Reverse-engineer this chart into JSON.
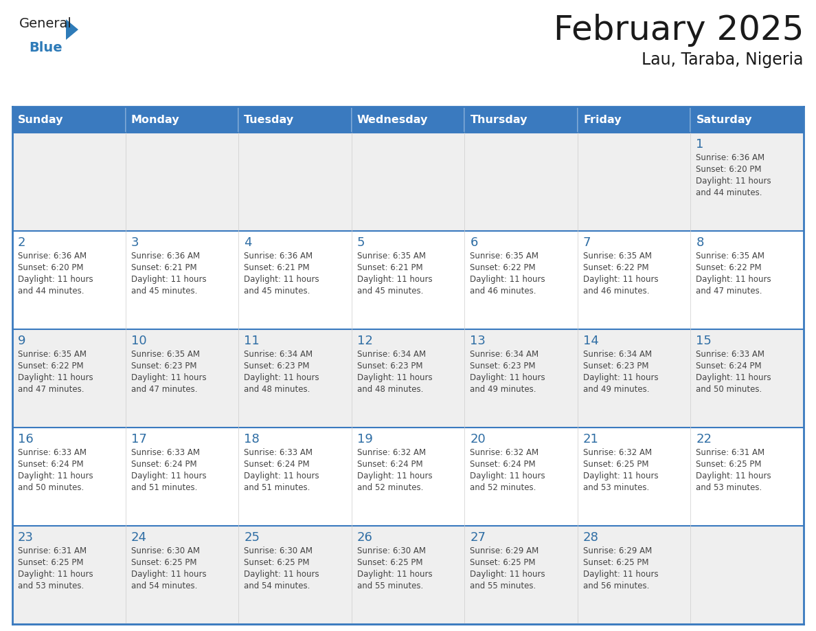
{
  "title": "February 2025",
  "subtitle": "Lau, Taraba, Nigeria",
  "header_bg": "#3a7abf",
  "header_text_color": "#FFFFFF",
  "cell_bg_white": "#FFFFFF",
  "cell_bg_gray": "#EFEFEF",
  "day_number_color": "#2E6DA4",
  "cell_text_color": "#444444",
  "grid_color": "#3a7abf",
  "separator_color": "#3a7abf",
  "days_of_week": [
    "Sunday",
    "Monday",
    "Tuesday",
    "Wednesday",
    "Thursday",
    "Friday",
    "Saturday"
  ],
  "calendar_data": [
    [
      null,
      null,
      null,
      null,
      null,
      null,
      1
    ],
    [
      2,
      3,
      4,
      5,
      6,
      7,
      8
    ],
    [
      9,
      10,
      11,
      12,
      13,
      14,
      15
    ],
    [
      16,
      17,
      18,
      19,
      20,
      21,
      22
    ],
    [
      23,
      24,
      25,
      26,
      27,
      28,
      null
    ]
  ],
  "cell_info": {
    "1": {
      "sunrise": "6:36 AM",
      "sunset": "6:20 PM",
      "daylight": "11 hours and 44 minutes."
    },
    "2": {
      "sunrise": "6:36 AM",
      "sunset": "6:20 PM",
      "daylight": "11 hours and 44 minutes."
    },
    "3": {
      "sunrise": "6:36 AM",
      "sunset": "6:21 PM",
      "daylight": "11 hours and 45 minutes."
    },
    "4": {
      "sunrise": "6:36 AM",
      "sunset": "6:21 PM",
      "daylight": "11 hours and 45 minutes."
    },
    "5": {
      "sunrise": "6:35 AM",
      "sunset": "6:21 PM",
      "daylight": "11 hours and 45 minutes."
    },
    "6": {
      "sunrise": "6:35 AM",
      "sunset": "6:22 PM",
      "daylight": "11 hours and 46 minutes."
    },
    "7": {
      "sunrise": "6:35 AM",
      "sunset": "6:22 PM",
      "daylight": "11 hours and 46 minutes."
    },
    "8": {
      "sunrise": "6:35 AM",
      "sunset": "6:22 PM",
      "daylight": "11 hours and 47 minutes."
    },
    "9": {
      "sunrise": "6:35 AM",
      "sunset": "6:22 PM",
      "daylight": "11 hours and 47 minutes."
    },
    "10": {
      "sunrise": "6:35 AM",
      "sunset": "6:23 PM",
      "daylight": "11 hours and 47 minutes."
    },
    "11": {
      "sunrise": "6:34 AM",
      "sunset": "6:23 PM",
      "daylight": "11 hours and 48 minutes."
    },
    "12": {
      "sunrise": "6:34 AM",
      "sunset": "6:23 PM",
      "daylight": "11 hours and 48 minutes."
    },
    "13": {
      "sunrise": "6:34 AM",
      "sunset": "6:23 PM",
      "daylight": "11 hours and 49 minutes."
    },
    "14": {
      "sunrise": "6:34 AM",
      "sunset": "6:23 PM",
      "daylight": "11 hours and 49 minutes."
    },
    "15": {
      "sunrise": "6:33 AM",
      "sunset": "6:24 PM",
      "daylight": "11 hours and 50 minutes."
    },
    "16": {
      "sunrise": "6:33 AM",
      "sunset": "6:24 PM",
      "daylight": "11 hours and 50 minutes."
    },
    "17": {
      "sunrise": "6:33 AM",
      "sunset": "6:24 PM",
      "daylight": "11 hours and 51 minutes."
    },
    "18": {
      "sunrise": "6:33 AM",
      "sunset": "6:24 PM",
      "daylight": "11 hours and 51 minutes."
    },
    "19": {
      "sunrise": "6:32 AM",
      "sunset": "6:24 PM",
      "daylight": "11 hours and 52 minutes."
    },
    "20": {
      "sunrise": "6:32 AM",
      "sunset": "6:24 PM",
      "daylight": "11 hours and 52 minutes."
    },
    "21": {
      "sunrise": "6:32 AM",
      "sunset": "6:25 PM",
      "daylight": "11 hours and 53 minutes."
    },
    "22": {
      "sunrise": "6:31 AM",
      "sunset": "6:25 PM",
      "daylight": "11 hours and 53 minutes."
    },
    "23": {
      "sunrise": "6:31 AM",
      "sunset": "6:25 PM",
      "daylight": "11 hours and 53 minutes."
    },
    "24": {
      "sunrise": "6:30 AM",
      "sunset": "6:25 PM",
      "daylight": "11 hours and 54 minutes."
    },
    "25": {
      "sunrise": "6:30 AM",
      "sunset": "6:25 PM",
      "daylight": "11 hours and 54 minutes."
    },
    "26": {
      "sunrise": "6:30 AM",
      "sunset": "6:25 PM",
      "daylight": "11 hours and 55 minutes."
    },
    "27": {
      "sunrise": "6:29 AM",
      "sunset": "6:25 PM",
      "daylight": "11 hours and 55 minutes."
    },
    "28": {
      "sunrise": "6:29 AM",
      "sunset": "6:25 PM",
      "daylight": "11 hours and 56 minutes."
    }
  },
  "logo_text1": "General",
  "logo_text2": "Blue",
  "logo_text1_color": "#222222",
  "logo_text2_color": "#2E7BB8",
  "logo_triangle_color": "#2E7BB8"
}
